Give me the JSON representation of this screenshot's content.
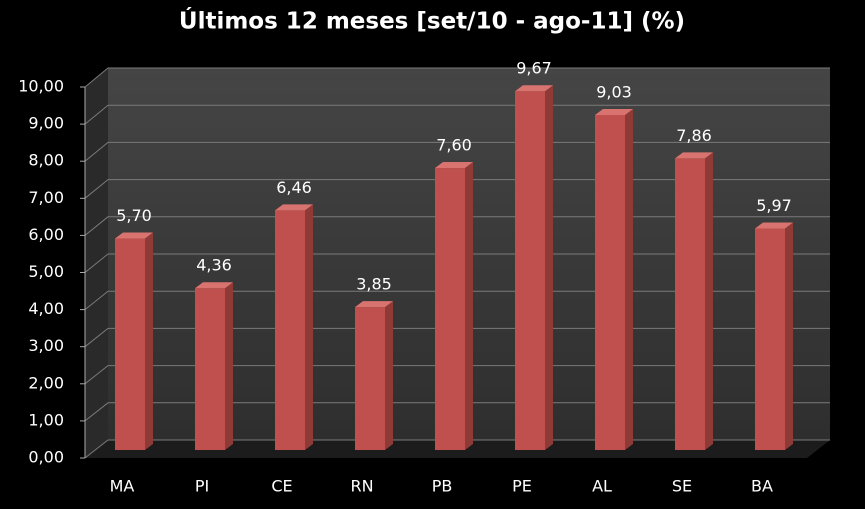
{
  "chart_data": {
    "type": "bar3d",
    "title": "Últimos 12 meses [set/10 - ago-11] (%)",
    "categories": [
      "MA",
      "PI",
      "CE",
      "RN",
      "PB",
      "PE",
      "AL",
      "SE",
      "BA"
    ],
    "values": [
      5.7,
      4.36,
      6.46,
      3.85,
      7.6,
      9.67,
      9.03,
      7.86,
      5.97
    ],
    "value_labels": [
      "5,70",
      "4,36",
      "6,46",
      "3,85",
      "7,60",
      "9,67",
      "9,03",
      "7,86",
      "5,97"
    ],
    "color": "#c0504d",
    "ylim": [
      0,
      10
    ],
    "yticks": [
      {
        "value": 0,
        "label": "0,00"
      },
      {
        "value": 1,
        "label": "1,00"
      },
      {
        "value": 2,
        "label": "2,00"
      },
      {
        "value": 3,
        "label": "3,00"
      },
      {
        "value": 4,
        "label": "4,00"
      },
      {
        "value": 5,
        "label": "5,00"
      },
      {
        "value": 6,
        "label": "6,00"
      },
      {
        "value": 7,
        "label": "7,00"
      },
      {
        "value": 8,
        "label": "8,00"
      },
      {
        "value": 9,
        "label": "9,00"
      },
      {
        "value": 10,
        "label": "10,00"
      }
    ],
    "grid": true
  }
}
